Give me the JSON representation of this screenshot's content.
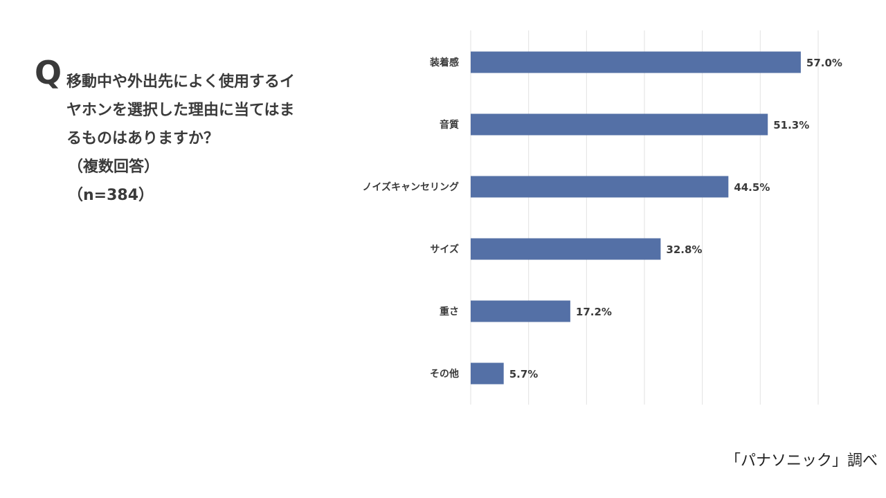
{
  "question": {
    "mark": "Q",
    "lines": [
      "移動中や外出先によく使用するイ",
      "ヤホンを選択した理由に当てはま",
      "るものはありますか？"
    ],
    "note": "（複数回答）",
    "sample": "（n=384）"
  },
  "source": "「パナソニック」調べ",
  "colors": {
    "bar": "#5470a6",
    "grid": "#e2e2e2",
    "text": "#3a3a3a"
  },
  "chart_data": {
    "type": "bar",
    "orientation": "horizontal",
    "categories": [
      "装着感",
      "音質",
      "ノイズキャンセリング",
      "サイズ",
      "重さ",
      "その他"
    ],
    "values": [
      57.0,
      51.3,
      44.5,
      32.8,
      17.2,
      5.7
    ],
    "value_labels": [
      "57.0%",
      "51.3%",
      "44.5%",
      "32.8%",
      "17.2%",
      "5.7%"
    ],
    "xlim": [
      0,
      60
    ],
    "grid": true,
    "legend": "none"
  }
}
